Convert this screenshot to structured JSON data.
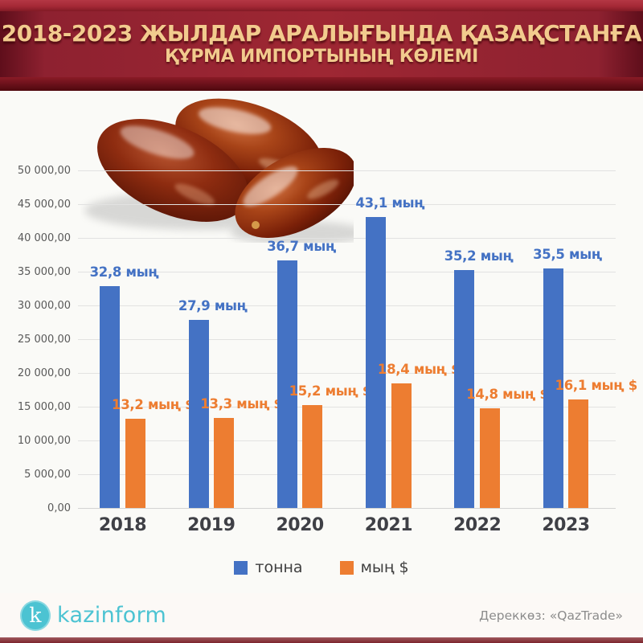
{
  "header": {
    "title_line1": "2018-2023 ЖЫЛДАР АРАЛЫҒЫНДА ҚАЗАҚСТАНҒА",
    "title_line2": "ҚҰРМА ИМПОРТЫНЫҢ КӨЛЕМІ"
  },
  "chart_data": {
    "type": "bar",
    "title": "2018-2023 жылдар аралығында Қазақстанға құрма импортының көлемі",
    "categories": [
      "2018",
      "2019",
      "2020",
      "2021",
      "2022",
      "2023"
    ],
    "series": [
      {
        "name": "тонна",
        "color": "#4472C4",
        "values": [
          32800,
          27900,
          36700,
          43100,
          35200,
          35500
        ],
        "labels": [
          "32,8 мың",
          "27,9 мың",
          "36,7 мың",
          "43,1 мың",
          "35,2 мың",
          "35,5 мың"
        ]
      },
      {
        "name": "мың $",
        "color": "#ED7D31",
        "values": [
          13200,
          13300,
          15200,
          18400,
          14800,
          16100
        ],
        "labels": [
          "13,2 мың $",
          "13,3 мың $",
          "15,2 мың $",
          "18,4 мың $",
          "14,8 мың $",
          "16,1 мың $"
        ]
      }
    ],
    "ylim": [
      0,
      50000
    ],
    "ytick_step": 5000,
    "ytick_labels": [
      "0,00",
      "5 000,00",
      "10 000,00",
      "15 000,00",
      "20 000,00",
      "25 000,00",
      "30 000,00",
      "35 000,00",
      "40 000,00",
      "45 000,00",
      "50 000,00"
    ],
    "grid": true,
    "legend_position": "bottom"
  },
  "footer": {
    "logo_letter": "k",
    "logo_text": "kazinform",
    "source": "Дереккөз: «QazTrade»"
  },
  "colors": {
    "banner_red": "#9c2430",
    "banner_text_gold": "#f2cb8e",
    "series_blue": "#4472C4",
    "series_orange": "#ED7D31",
    "logo_teal": "#4cc3d2",
    "source_gray": "#8c8c8c",
    "axis_gray": "#595959",
    "year_label": "#3f4046"
  }
}
